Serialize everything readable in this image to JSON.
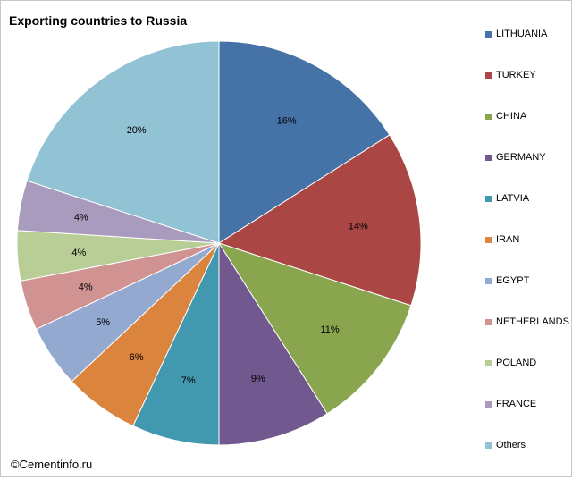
{
  "chart_data": {
    "type": "pie",
    "title": "Exporting countries to Russia",
    "categories": [
      "LITHUANIA",
      "TURKEY",
      "CHINA",
      "GERMANY",
      "LATVIA",
      "IRAN",
      "EGYPT",
      "NETHERLANDS",
      "POLAND",
      "FRANCE",
      "Others"
    ],
    "values": [
      16,
      14,
      11,
      9,
      7,
      6,
      5,
      4,
      4,
      4,
      20
    ],
    "labels": [
      "16%",
      "14%",
      "11%",
      "9%",
      "7%",
      "6%",
      "5%",
      "4%",
      "4%",
      "4%",
      "20%"
    ],
    "colors": [
      "#4572A7",
      "#AA4643",
      "#89A54E",
      "#71588F",
      "#4198AF",
      "#DB843D",
      "#93A9CF",
      "#D19392",
      "#B9CD96",
      "#A99BBD",
      "#92C3D4"
    ],
    "legend_position": "right",
    "start_angle": "top-clockwise"
  },
  "footer": {
    "copyright": "©Cementinfo.ru"
  }
}
